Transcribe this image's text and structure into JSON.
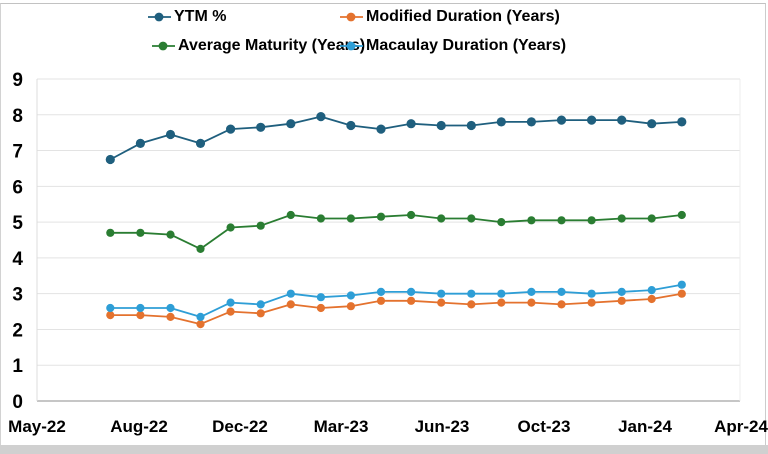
{
  "window": {
    "frame_color": "#c9c9c9",
    "bottom_strip_color": "#d0d0d0",
    "background": "#ffffff"
  },
  "legend": {
    "position": "top",
    "rows": 2,
    "items": [
      {
        "label": "YTM %",
        "color": "#1f5f7e"
      },
      {
        "label": "Modified Duration (Years)",
        "color": "#e4722e"
      },
      {
        "label": "Average Maturity (Years)",
        "color": "#2a7d32"
      },
      {
        "label": "Macaulay Duration (Years)",
        "color": "#2e9ed6"
      }
    ]
  },
  "chart_data": {
    "type": "line",
    "title": "",
    "xlabel": "",
    "ylabel": "",
    "grid": true,
    "gridline_color": "#e3e3e3",
    "axis_line_color": "#b3b3b3",
    "tick_label_color": "#000000",
    "ylim": [
      0,
      9
    ],
    "y_tick_step": 1,
    "y_tick_labels": [
      "0",
      "1",
      "2",
      "3",
      "4",
      "5",
      "6",
      "7",
      "8",
      "9"
    ],
    "x_tick_labels": [
      "May-22",
      "Aug-22",
      "Dec-22",
      "Mar-23",
      "Jun-23",
      "Oct-23",
      "Jan-24",
      "Apr-24"
    ],
    "x": [
      "Jul-22",
      "Aug-22",
      "Sep-22",
      "Oct-22",
      "Nov-22",
      "Dec-22",
      "Jan-23",
      "Feb-23",
      "Mar-23",
      "Apr-23",
      "May-23",
      "Jun-23",
      "Jul-23",
      "Aug-23",
      "Sep-23",
      "Oct-23",
      "Nov-23",
      "Dec-23",
      "Jan-24",
      "Feb-24"
    ],
    "series": [
      {
        "name": "YTM %",
        "color": "#1f5f7e",
        "marker": "circle",
        "values": [
          6.75,
          7.2,
          7.45,
          7.2,
          7.6,
          7.65,
          7.75,
          7.95,
          7.7,
          7.6,
          7.75,
          7.7,
          7.7,
          7.8,
          7.8,
          7.85,
          7.85,
          7.85,
          7.75,
          7.8
        ]
      },
      {
        "name": "Modified Duration (Years)",
        "color": "#e4722e",
        "marker": "circle",
        "values": [
          2.4,
          2.4,
          2.35,
          2.15,
          2.5,
          2.45,
          2.7,
          2.6,
          2.65,
          2.8,
          2.8,
          2.75,
          2.7,
          2.75,
          2.75,
          2.7,
          2.75,
          2.8,
          2.85,
          3.0
        ]
      },
      {
        "name": "Average Maturity (Years)",
        "color": "#2a7d32",
        "marker": "circle",
        "values": [
          4.7,
          4.7,
          4.65,
          4.25,
          4.85,
          4.9,
          5.2,
          5.1,
          5.1,
          5.15,
          5.2,
          5.1,
          5.1,
          5.0,
          5.05,
          5.05,
          5.05,
          5.1,
          5.1,
          5.2
        ]
      },
      {
        "name": "Macaulay Duration (Years)",
        "color": "#2e9ed6",
        "marker": "circle",
        "values": [
          2.6,
          2.6,
          2.6,
          2.35,
          2.75,
          2.7,
          3.0,
          2.9,
          2.95,
          3.05,
          3.05,
          3.0,
          3.0,
          3.0,
          3.05,
          3.05,
          3.0,
          3.05,
          3.1,
          3.25
        ]
      }
    ]
  }
}
